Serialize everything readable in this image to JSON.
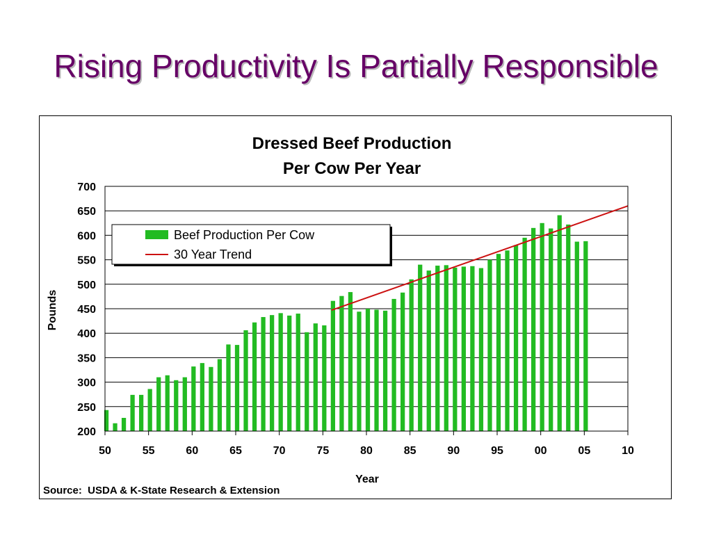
{
  "slide": {
    "title": "Rising Productivity Is Partially Responsible"
  },
  "source_note": "Source:  USDA & K-State Research & Extension",
  "colors": {
    "title": "#660066",
    "bar": "#22bb22",
    "trend": "#cc1111"
  },
  "chart_data": {
    "type": "bar",
    "title_lines": [
      "Dressed Beef Production",
      "Per Cow Per Year"
    ],
    "xlabel": "Year",
    "ylabel": "Pounds",
    "ylim": [
      200,
      700
    ],
    "yticks": [
      200,
      250,
      300,
      350,
      400,
      450,
      500,
      550,
      600,
      650,
      700
    ],
    "xlim": [
      1950,
      2010
    ],
    "xticks": [
      {
        "year": 1950,
        "label": "50"
      },
      {
        "year": 1955,
        "label": "55"
      },
      {
        "year": 1960,
        "label": "60"
      },
      {
        "year": 1965,
        "label": "65"
      },
      {
        "year": 1970,
        "label": "70"
      },
      {
        "year": 1975,
        "label": "75"
      },
      {
        "year": 1980,
        "label": "80"
      },
      {
        "year": 1985,
        "label": "85"
      },
      {
        "year": 1990,
        "label": "90"
      },
      {
        "year": 1995,
        "label": "95"
      },
      {
        "year": 2000,
        "label": "00"
      },
      {
        "year": 2005,
        "label": "05"
      },
      {
        "year": 2010,
        "label": "10"
      }
    ],
    "grid": true,
    "legend_position": "upper-left",
    "series": [
      {
        "name": "Beef Production Per Cow",
        "type": "bar",
        "x": [
          1950,
          1951,
          1952,
          1953,
          1954,
          1955,
          1956,
          1957,
          1958,
          1959,
          1960,
          1961,
          1962,
          1963,
          1964,
          1965,
          1966,
          1967,
          1968,
          1969,
          1970,
          1971,
          1972,
          1973,
          1974,
          1975,
          1976,
          1977,
          1978,
          1979,
          1980,
          1981,
          1982,
          1983,
          1984,
          1985,
          1986,
          1987,
          1988,
          1989,
          1990,
          1991,
          1992,
          1993,
          1994,
          1995,
          1996,
          1997,
          1998,
          1999,
          2000,
          2001,
          2002,
          2003,
          2004,
          2005
        ],
        "values": [
          243,
          216,
          227,
          274,
          274,
          286,
          310,
          314,
          304,
          310,
          332,
          339,
          331,
          347,
          377,
          376,
          406,
          422,
          433,
          437,
          441,
          436,
          440,
          402,
          420,
          416,
          466,
          476,
          484,
          444,
          450,
          448,
          446,
          470,
          483,
          510,
          540,
          528,
          538,
          539,
          534,
          536,
          537,
          533,
          550,
          562,
          569,
          580,
          595,
          615,
          625,
          614,
          641,
          622,
          587,
          588
        ]
      },
      {
        "name": "30 Year Trend",
        "type": "line",
        "x": [
          1976,
          2010
        ],
        "values": [
          447,
          660
        ]
      }
    ]
  }
}
